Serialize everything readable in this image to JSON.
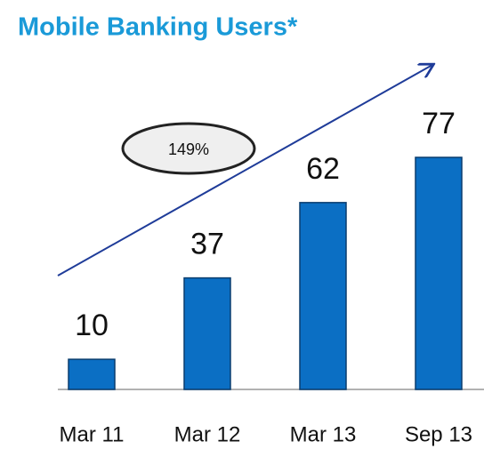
{
  "chart_data": {
    "type": "bar",
    "title": "Mobile Banking Users*",
    "categories": [
      "Mar 11",
      "Mar 12",
      "Mar 13",
      "Sep 13"
    ],
    "values": [
      10,
      37,
      62,
      77
    ],
    "color": "#0b6fc4",
    "annotations": [
      "149%"
    ]
  }
}
